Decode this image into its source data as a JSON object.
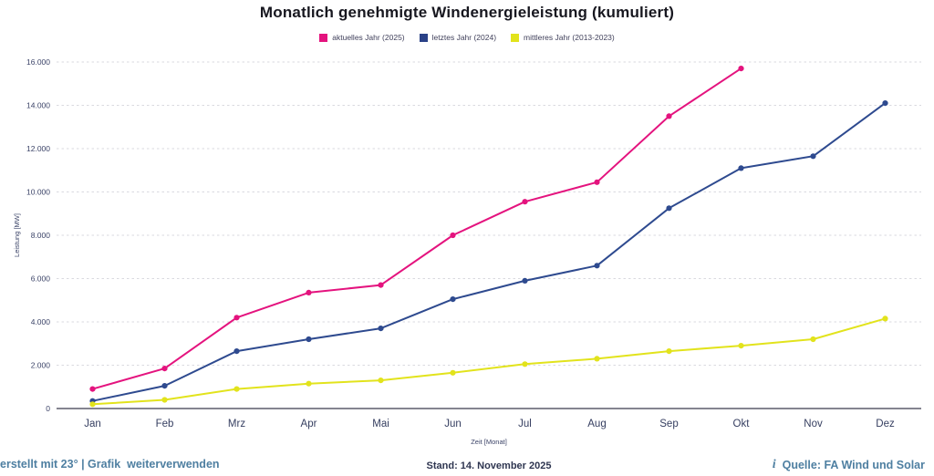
{
  "title": "Monatlich genehmigte Windenergieleistung (kumuliert)",
  "legend": [
    {
      "label": "aktuelles Jahr (2025)",
      "color": "#e4137e"
    },
    {
      "label": "letztes Jahr (2024)",
      "color": "#2a4187"
    },
    {
      "label": "mittleres Jahr (2013-2023)",
      "color": "#e2e31c"
    }
  ],
  "chart_data": {
    "type": "line",
    "categories": [
      "Jan",
      "Feb",
      "Mrz",
      "Apr",
      "Mai",
      "Jun",
      "Jul",
      "Aug",
      "Sep",
      "Okt",
      "Nov",
      "Dez"
    ],
    "series": [
      {
        "name": "aktuelles Jahr (2025)",
        "color": "#e4137e",
        "values": [
          900,
          1850,
          4200,
          5350,
          5700,
          8000,
          9550,
          10450,
          13500,
          15700,
          null,
          null
        ]
      },
      {
        "name": "letztes Jahr (2024)",
        "color": "#2e4a8f",
        "values": [
          350,
          1050,
          2650,
          3200,
          3700,
          5050,
          5900,
          6600,
          9250,
          11100,
          11650,
          14100
        ]
      },
      {
        "name": "mittleres Jahr (2013-2023)",
        "color": "#e2e31c",
        "values": [
          200,
          400,
          900,
          1150,
          1300,
          1650,
          2050,
          2300,
          2650,
          2900,
          3200,
          4150
        ]
      }
    ],
    "xlabel": "Zeit [Monat]",
    "ylabel": "Leistung [MW]",
    "ylim": [
      0,
      16000
    ],
    "ytick_interval": 2000,
    "ytick_labels": [
      "0",
      "2.000",
      "4.000",
      "6.000",
      "8.000",
      "10.000",
      "12.000",
      "14.000",
      "16.000"
    ],
    "grid": true,
    "legend_position": "top"
  },
  "footer": {
    "left": "erstellt mit 23° | Grafik  weiterverwenden",
    "stand": "Stand: 14. November 2025",
    "info_icon": "i",
    "source": "Quelle: FA Wind und Solar"
  },
  "colors": {
    "grid": "#d9d9df",
    "axis": "#5b5b6b",
    "tick_label": "#3c4468",
    "month_label": "#353e60"
  }
}
